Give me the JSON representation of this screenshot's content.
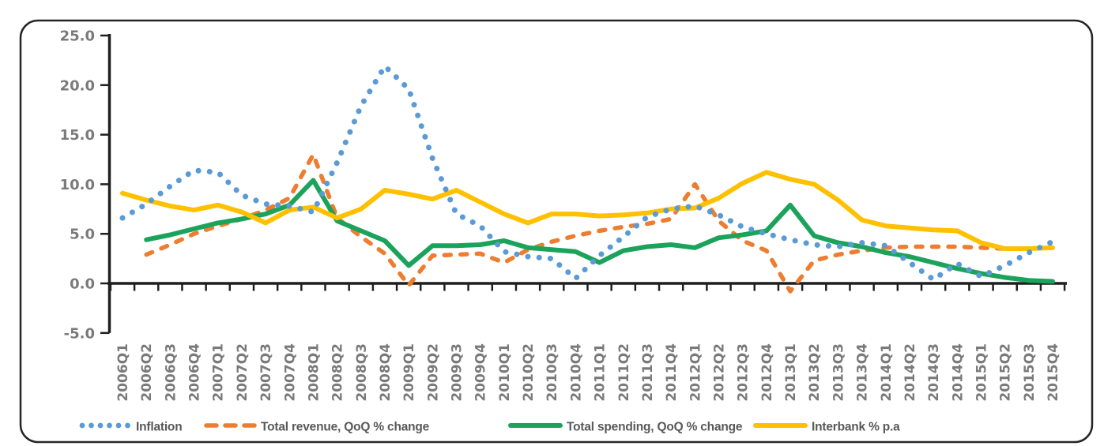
{
  "chart_data": {
    "type": "line",
    "title": "",
    "xlabel": "",
    "ylabel": "",
    "ylim": [
      -5,
      25
    ],
    "ytick_step": 5,
    "ytick_labels": [
      "25.0",
      "20.0",
      "15.0",
      "10.0",
      "5.0",
      "0.0",
      "-5.0"
    ],
    "grid": false,
    "legend_position": "bottom",
    "categories": [
      "2006Q1",
      "2006Q2",
      "2006Q3",
      "2006Q4",
      "2007Q1",
      "2007Q2",
      "2007Q3",
      "2007Q4",
      "2008Q1",
      "2008Q2",
      "2008Q3",
      "2008Q4",
      "2009Q1",
      "2009Q2",
      "2009Q3",
      "2009Q4",
      "2010Q1",
      "2010Q2",
      "2010Q3",
      "2010Q4",
      "2011Q1",
      "2011Q2",
      "2011Q3",
      "2011Q4",
      "2012Q1",
      "2012Q2",
      "2012Q3",
      "2012Q4",
      "2013Q1",
      "2013Q2",
      "2013Q3",
      "2013Q4",
      "2014Q1",
      "2014Q2",
      "2014Q3",
      "2014Q4",
      "2015Q1",
      "2015Q2",
      "2015Q3",
      "2015Q4"
    ],
    "series": [
      {
        "name": "Inflation",
        "color": "#5B9BD5",
        "line_style": "dotted",
        "values": [
          6.6,
          8.0,
          9.8,
          11.4,
          11.2,
          8.9,
          8.0,
          7.8,
          7.2,
          12.2,
          17.9,
          21.9,
          19.6,
          12.6,
          7.0,
          5.8,
          3.2,
          2.7,
          2.5,
          0.5,
          2.8,
          4.7,
          6.7,
          7.5,
          7.8,
          6.9,
          5.7,
          5.0,
          4.4,
          3.9,
          3.7,
          4.1,
          3.8,
          2.1,
          0.4,
          2.0,
          0.7,
          1.8,
          3.1,
          4.2
        ]
      },
      {
        "name": "Total revenue, QoQ % change",
        "color": "#ED7D31",
        "line_style": "dashed",
        "values": [
          null,
          2.9,
          3.9,
          5.0,
          5.8,
          6.5,
          7.4,
          8.6,
          13.0,
          6.6,
          4.7,
          3.0,
          -0.2,
          2.8,
          2.9,
          3.0,
          2.1,
          3.4,
          4.2,
          4.8,
          5.3,
          5.7,
          6.0,
          6.5,
          10.0,
          6.3,
          4.3,
          3.3,
          -0.8,
          2.3,
          2.9,
          3.3,
          3.6,
          3.7,
          3.7,
          3.7,
          3.6,
          3.5,
          3.5,
          3.6
        ]
      },
      {
        "name": "Total spending, QoQ % change",
        "color": "#1CA35B",
        "line_style": "solid",
        "values": [
          null,
          4.4,
          4.9,
          5.5,
          6.1,
          6.5,
          7.0,
          7.9,
          10.4,
          6.3,
          5.3,
          4.3,
          1.8,
          3.8,
          3.8,
          3.9,
          4.3,
          3.6,
          3.4,
          3.2,
          2.1,
          3.3,
          3.7,
          3.9,
          3.6,
          4.6,
          4.9,
          5.3,
          7.9,
          4.8,
          4.1,
          3.7,
          3.1,
          2.7,
          2.1,
          1.5,
          1.0,
          0.6,
          0.3,
          0.2
        ]
      },
      {
        "name": "Interbank % p.a",
        "color": "#FFC000",
        "line_style": "solid",
        "values": [
          9.1,
          8.4,
          7.8,
          7.4,
          7.9,
          7.2,
          6.1,
          7.4,
          7.7,
          6.6,
          7.5,
          9.4,
          9.0,
          8.5,
          9.4,
          8.2,
          7.0,
          6.1,
          7.0,
          7.0,
          6.8,
          6.9,
          7.1,
          7.5,
          7.6,
          8.6,
          10.1,
          11.2,
          10.5,
          10.0,
          8.4,
          6.4,
          5.8,
          5.6,
          5.4,
          5.3,
          4.1,
          3.5,
          3.5,
          3.6
        ]
      }
    ],
    "colors": {
      "axis": "#1f1f1f",
      "border": "#262626",
      "tick_label": "#7a7a7a",
      "legend_text": "#595959",
      "background": "#ffffff"
    }
  }
}
